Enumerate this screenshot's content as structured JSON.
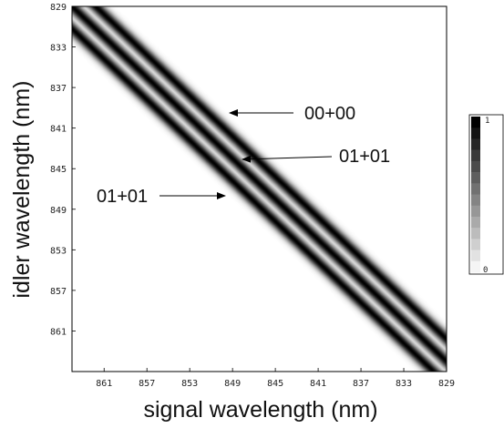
{
  "chart_data": {
    "type": "heatmap",
    "title": "",
    "xlabel": "signal wavelength (nm)",
    "ylabel": "idler wavelength (nm)",
    "x_ticks": [
      "861",
      "857",
      "853",
      "849",
      "845",
      "841",
      "837",
      "833",
      "829"
    ],
    "y_ticks": [
      "829",
      "833",
      "837",
      "841",
      "845",
      "849",
      "853",
      "857",
      "861"
    ],
    "x_range_nm": [
      864,
      829
    ],
    "y_range_nm": [
      829,
      865
    ],
    "colorbar": {
      "min_label": "0",
      "max_label": "1",
      "levels": 14
    },
    "stripes": [
      {
        "label": "00+00",
        "offset_nm": 0
      },
      {
        "label": "01+01",
        "offset_nm": -2.2
      },
      {
        "label": "01+01",
        "offset_nm": 2.2
      }
    ],
    "annotations": [
      {
        "text": "00+00",
        "points_to_stripe": 0
      },
      {
        "text": "01+01",
        "points_to_stripe": 1
      },
      {
        "text": "01+01",
        "points_to_stripe": 2
      }
    ]
  }
}
